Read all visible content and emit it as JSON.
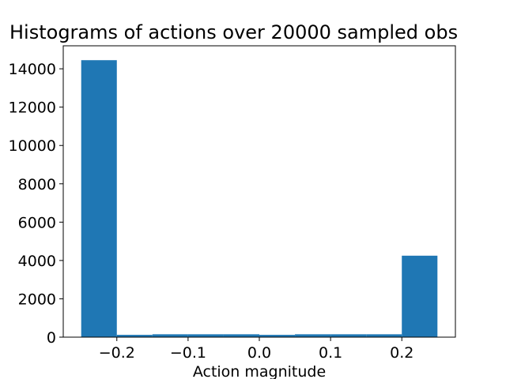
{
  "chart_data": {
    "type": "bar",
    "title": "Histograms of actions over 20000 sampled obs",
    "xlabel": "Action magnitude",
    "ylabel": "",
    "bin_edges": [
      -0.25,
      -0.2,
      -0.15,
      -0.1,
      -0.05,
      0.0,
      0.05,
      0.1,
      0.15,
      0.2,
      0.25
    ],
    "values": [
      14450,
      120,
      150,
      150,
      150,
      120,
      150,
      150,
      150,
      4250
    ],
    "xlim": [
      -0.2752,
      0.2752
    ],
    "ylim": [
      0,
      15200
    ],
    "xticks": [
      -0.2,
      -0.1,
      0.0,
      0.1,
      0.2
    ],
    "xtick_labels": [
      "−0.2",
      "−0.1",
      "0.0",
      "0.1",
      "0.2"
    ],
    "yticks": [
      0,
      2000,
      4000,
      6000,
      8000,
      10000,
      12000,
      14000
    ],
    "ytick_labels": [
      "0",
      "2000",
      "4000",
      "6000",
      "8000",
      "10000",
      "12000",
      "14000"
    ],
    "bar_color": "#1f77b4",
    "grid": false,
    "legend": "none"
  }
}
